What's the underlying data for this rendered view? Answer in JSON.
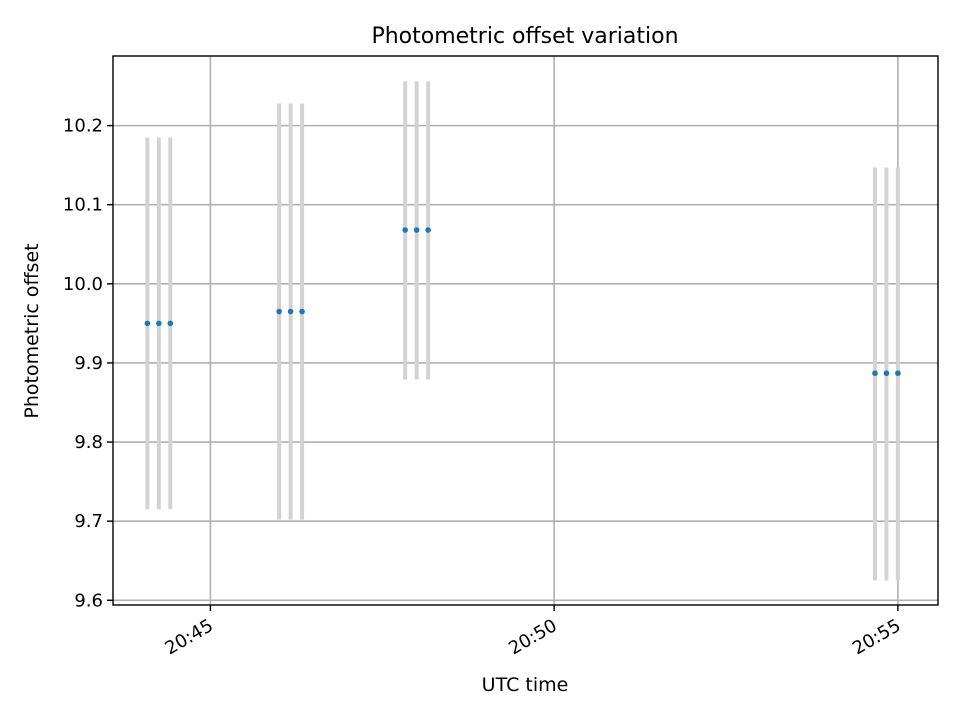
{
  "chart_data": {
    "type": "scatter",
    "title": "Photometric offset variation",
    "xlabel": "UTC time",
    "ylabel": "Photometric offset",
    "x_is_time": true,
    "xlim": [
      "20:43:35",
      "20:55:35"
    ],
    "ylim": [
      9.594,
      10.288
    ],
    "xticks": [
      "20:45",
      "20:50",
      "20:55"
    ],
    "yticks": [
      "9.6",
      "9.7",
      "9.8",
      "9.9",
      "10.0",
      "10.1",
      "10.2"
    ],
    "grid": true,
    "points": [
      {
        "x": "20:44:05",
        "y": 9.95,
        "err_low": 9.715,
        "err_high": 10.185
      },
      {
        "x": "20:44:15",
        "y": 9.95,
        "err_low": 9.715,
        "err_high": 10.185
      },
      {
        "x": "20:44:25",
        "y": 9.95,
        "err_low": 9.715,
        "err_high": 10.185
      },
      {
        "x": "20:46:00",
        "y": 9.965,
        "err_low": 9.702,
        "err_high": 10.228
      },
      {
        "x": "20:46:10",
        "y": 9.965,
        "err_low": 9.702,
        "err_high": 10.228
      },
      {
        "x": "20:46:20",
        "y": 9.965,
        "err_low": 9.702,
        "err_high": 10.228
      },
      {
        "x": "20:47:50",
        "y": 10.068,
        "err_low": 9.879,
        "err_high": 10.256
      },
      {
        "x": "20:48:00",
        "y": 10.068,
        "err_low": 9.879,
        "err_high": 10.256
      },
      {
        "x": "20:48:10",
        "y": 10.068,
        "err_low": 9.879,
        "err_high": 10.256
      },
      {
        "x": "20:54:40",
        "y": 9.887,
        "err_low": 9.625,
        "err_high": 10.147
      },
      {
        "x": "20:54:50",
        "y": 9.887,
        "err_low": 9.625,
        "err_high": 10.147
      },
      {
        "x": "20:55:00",
        "y": 9.887,
        "err_low": 9.625,
        "err_high": 10.147
      }
    ],
    "colors": {
      "point": "#1f77b4",
      "errorbar": "#d3d3d3"
    }
  }
}
